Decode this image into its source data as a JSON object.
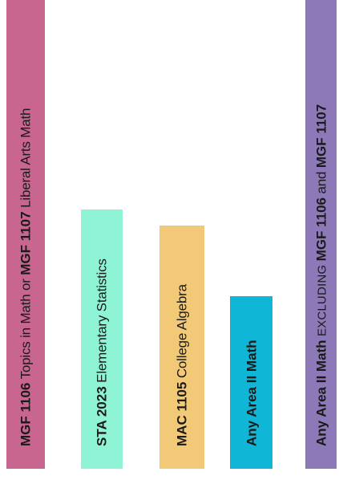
{
  "bars": [
    {
      "color": "#c86690",
      "parts": [
        "MGF 1106",
        " Topics in Math or ",
        "MGF 1107",
        " Liberal Arts Math"
      ]
    },
    {
      "color": "#8ff3d6",
      "parts": [
        "STA 2023",
        " Elementary Statistics"
      ]
    },
    {
      "color": "#f2c977",
      "parts": [
        "MAC 1105",
        " College Algebra"
      ]
    },
    {
      "color": "#10b6d6",
      "parts": [
        "Any Area II Math"
      ]
    },
    {
      "color": "#8e79b8",
      "parts": [
        "Any Area II Math",
        " EXCLUDING ",
        "MGF 1106",
        " and ",
        "MGF 1107"
      ]
    }
  ]
}
